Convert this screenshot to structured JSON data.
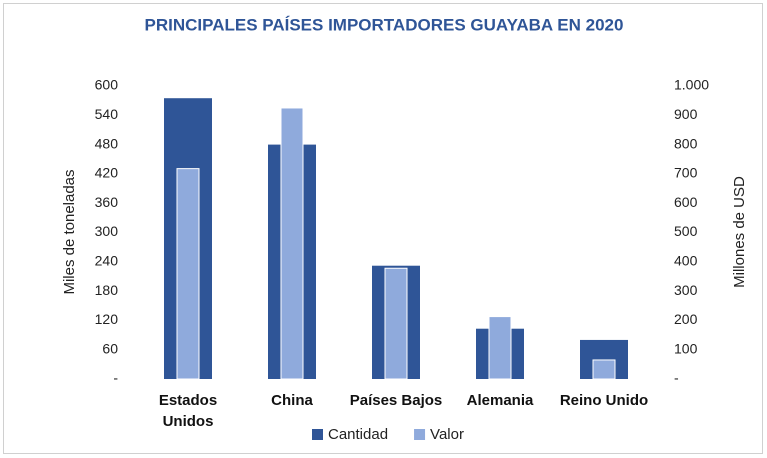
{
  "chart_data": {
    "type": "bar",
    "title": "PRINCIPALES PAÍSES IMPORTADORES GUAYABA EN 2020",
    "categories": [
      "Estados Unidos",
      "China",
      "Países Bajos",
      "Alemania",
      "Reino Unido"
    ],
    "series": [
      {
        "name": "Cantidad",
        "color": "#2f5597",
        "values": [
          575,
          480,
          232,
          103,
          80
        ]
      },
      {
        "name": "Valor",
        "color": "#8faadc",
        "axis": "y2",
        "values": [
          718,
          925,
          378,
          213,
          65
        ]
      }
    ],
    "ylabel": "Miles de toneladas",
    "y2label": "Millones de USD",
    "ylim": [
      0,
      600
    ],
    "yticks": [
      {
        "value": 0,
        "label": "-"
      },
      60,
      120,
      180,
      240,
      300,
      360,
      420,
      480,
      540,
      600
    ],
    "y2lim": [
      0,
      1000
    ],
    "y2ticks": [
      {
        "value": 0,
        "label": "-"
      },
      100,
      200,
      300,
      400,
      500,
      600,
      700,
      800,
      900,
      {
        "value": 1000,
        "label": "1.000"
      }
    ],
    "legend": "bottom"
  }
}
